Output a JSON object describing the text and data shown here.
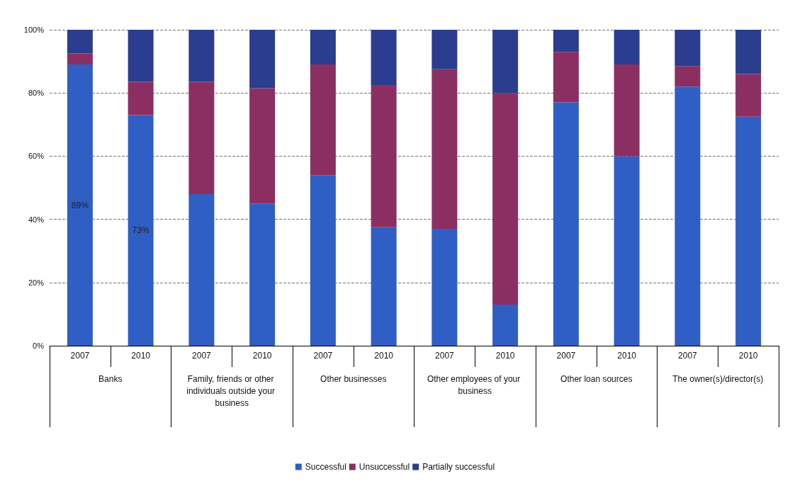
{
  "chart_data": {
    "type": "bar",
    "stacked": true,
    "categories": [
      "2007",
      "2010",
      "2007",
      "2010",
      "2007",
      "2010",
      "2007",
      "2010",
      "2007",
      "2010",
      "2007",
      "2010"
    ],
    "annotations": [
      "Banks",
      "Family, friends or other individuals outside your business",
      "Other businesses",
      "Other employees of your business",
      "Other loan sources",
      "The owner(s)/director(s)"
    ],
    "series": [
      {
        "name": "Successful",
        "color": "#2f5fc4",
        "values": [
          89,
          73,
          48,
          45,
          54,
          37.5,
          37,
          13,
          77,
          60,
          82,
          72.5
        ],
        "value_labels": [
          "89%",
          "73%",
          null,
          null,
          null,
          null,
          null,
          null,
          null,
          null,
          null,
          null
        ]
      },
      {
        "name": "Unsuccessful",
        "color": "#8b2f62",
        "values": [
          3.5,
          10.5,
          35.5,
          36.5,
          35,
          45,
          50.5,
          67,
          16,
          29,
          6.5,
          13.5
        ]
      },
      {
        "name": "Partially successful",
        "color": "#2b3d8f",
        "values": [
          7.5,
          16.5,
          16.5,
          18.5,
          11,
          17.5,
          12.5,
          20,
          7,
          11,
          11.5,
          14
        ]
      }
    ],
    "ylim": [
      0,
      100
    ],
    "yticks": [
      {
        "value": 0,
        "label": "0%"
      },
      {
        "value": 20,
        "label": "20%"
      },
      {
        "value": 40,
        "label": "40%"
      },
      {
        "value": 60,
        "label": "60%"
      },
      {
        "value": 80,
        "label": "80%"
      },
      {
        "value": 100,
        "label": "100%"
      }
    ],
    "grid": "y",
    "legend": "bottom"
  }
}
